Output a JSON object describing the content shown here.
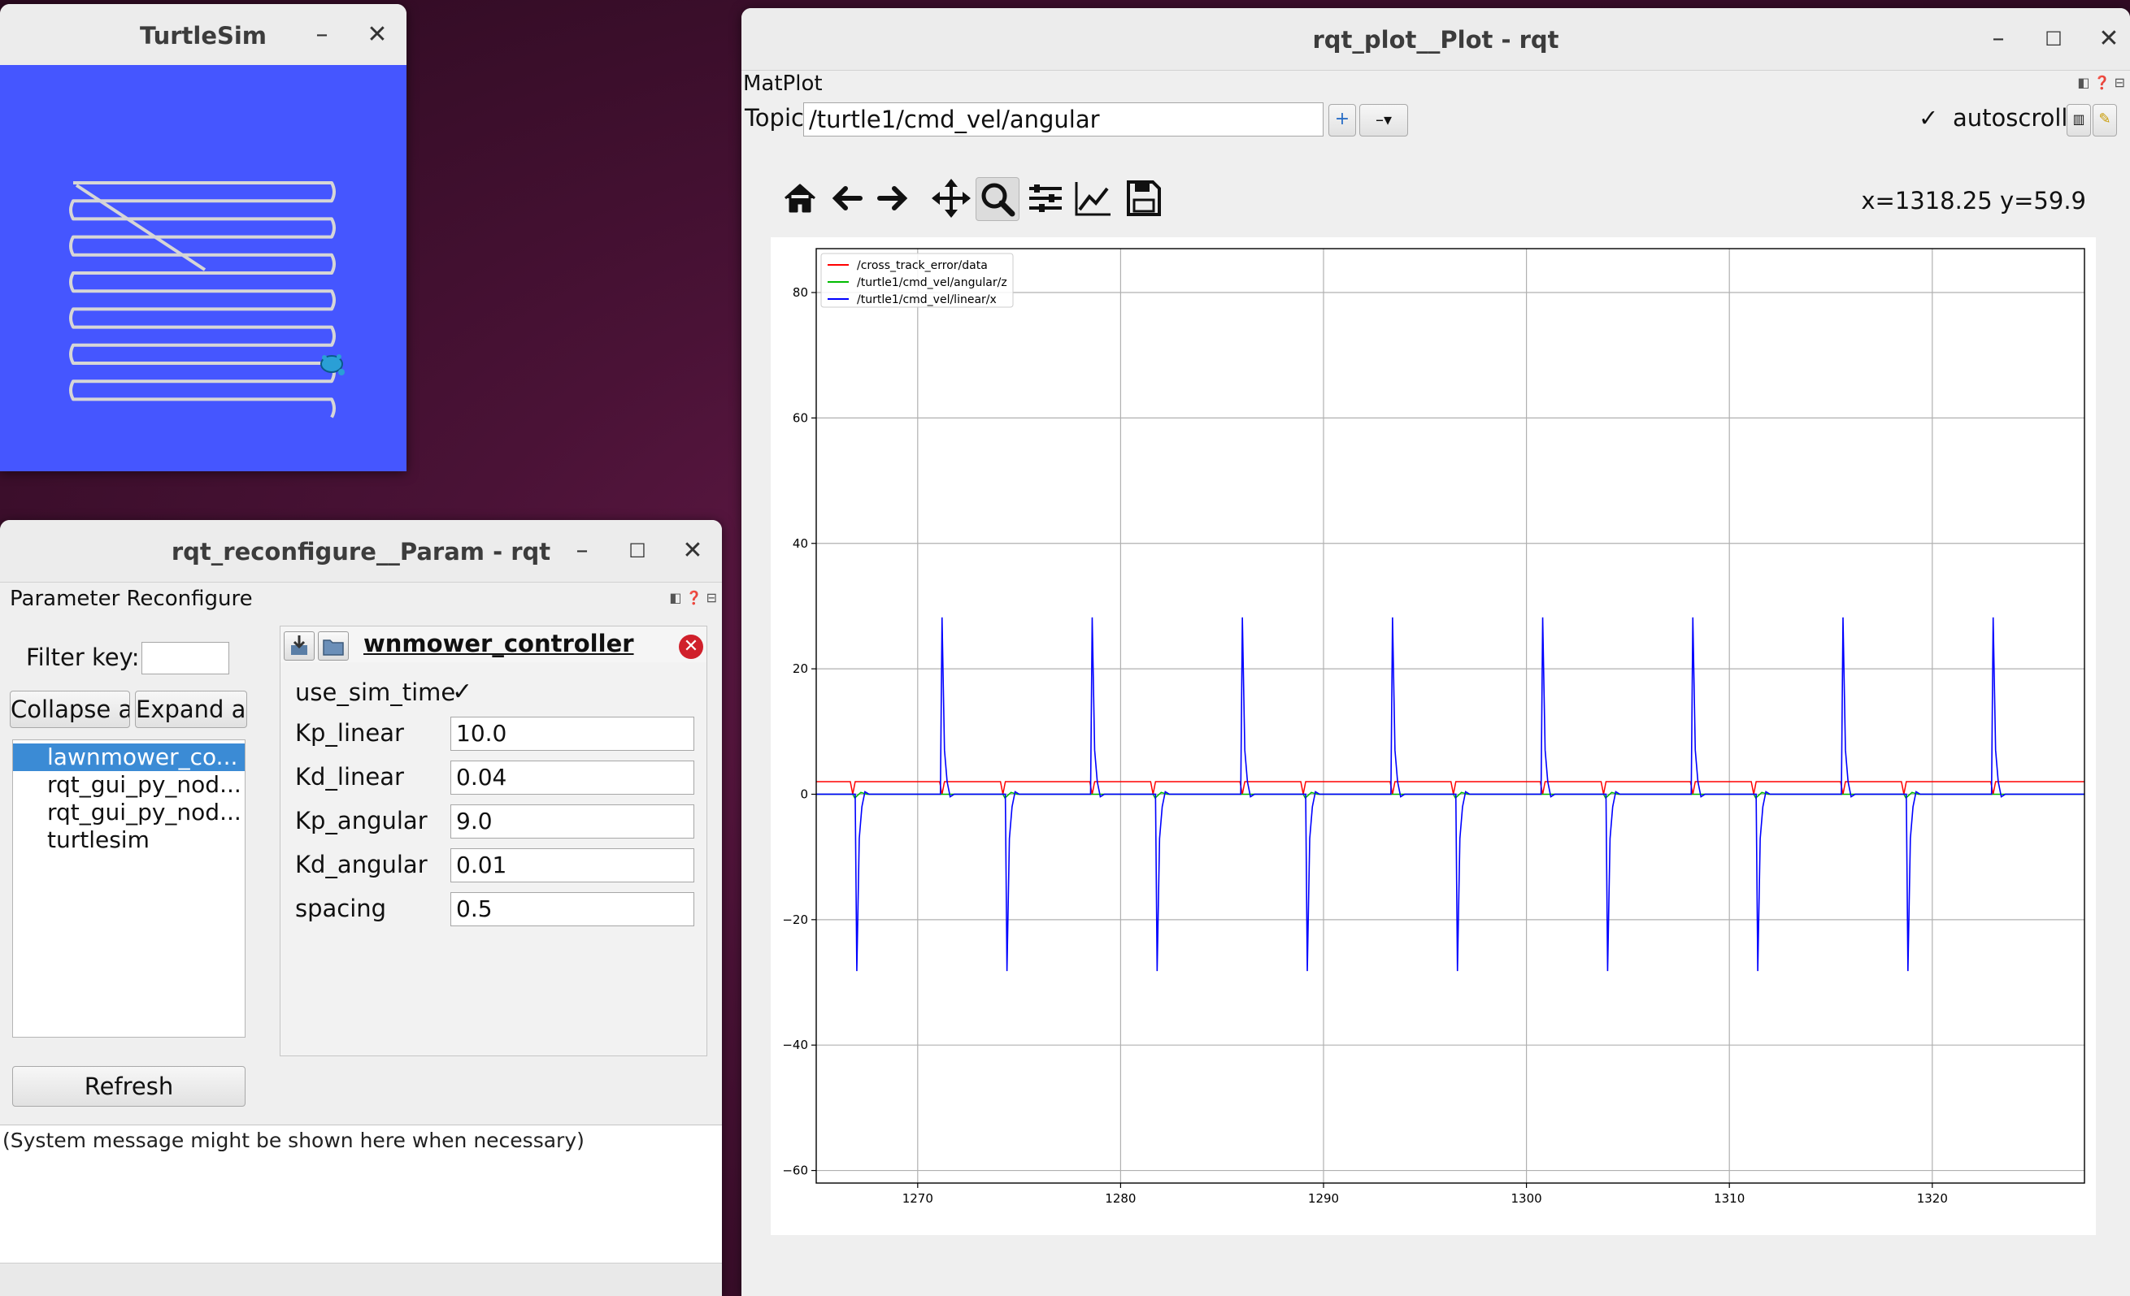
{
  "turtlesim": {
    "title": "TurtleSim",
    "minimize": "–",
    "close": "✕",
    "background_color": "#4556ff",
    "path_color": "#d6d6d6"
  },
  "reconfigure": {
    "title": "rqt_reconfigure__Param - rqt",
    "dock_title": "Parameter Reconfigure",
    "filter_label": "Filter key:",
    "filter_value": "",
    "collapse_label": "Collapse all",
    "expand_label": "Expand all",
    "nodes": [
      {
        "label": "lawnmower_co..."
      },
      {
        "label": "rqt_gui_py_nod..."
      },
      {
        "label": "rqt_gui_py_nod..."
      },
      {
        "label": "turtlesim"
      }
    ],
    "refresh_label": "Refresh",
    "node_title": "wnmower_controller",
    "params": [
      {
        "name": "use_sim_time",
        "kind": "checkbox",
        "value": "✓"
      },
      {
        "name": "Kp_linear",
        "kind": "text",
        "value": "10.0"
      },
      {
        "name": "Kd_linear",
        "kind": "text",
        "value": "0.04"
      },
      {
        "name": "Kp_angular",
        "kind": "text",
        "value": "9.0"
      },
      {
        "name": "Kd_angular",
        "kind": "text",
        "value": "0.01"
      },
      {
        "name": "spacing",
        "kind": "text",
        "value": "0.5"
      }
    ],
    "system_message": "(System message might be shown here when necessary)"
  },
  "plot": {
    "title": "rqt_plot__Plot - rqt",
    "dock_title": "MatPlot",
    "topic_label": "Topic",
    "topic_value": "/turtle1/cmd_vel/angular",
    "add_label": "+",
    "remove_label": "–▾",
    "autoscroll_check": "✓",
    "autoscroll_label": "autoscroll",
    "coords": "x=1318.25 y=59.9",
    "toolbar": [
      "home-icon",
      "back-icon",
      "forward-icon",
      "pan-icon",
      "zoom-icon",
      "configure-subplots-icon",
      "edit-axis-icon",
      "save-icon"
    ]
  },
  "chart_data": {
    "type": "line",
    "title": "",
    "xlabel": "",
    "ylabel": "",
    "xlim": [
      1265,
      1327.5
    ],
    "ylim": [
      -62,
      87
    ],
    "xticks": [
      1270,
      1280,
      1290,
      1300,
      1310,
      1320
    ],
    "yticks": [
      -60,
      -40,
      -20,
      0,
      20,
      40,
      60,
      80
    ],
    "grid": true,
    "legend_position": "upper-left",
    "series": [
      {
        "name": "/cross_track_error/data",
        "color": "#ff0000",
        "baseline": 2,
        "dip_value": 0,
        "event_times": [
          1266.8,
          1271.2,
          1274.2,
          1278.6,
          1281.6,
          1286.0,
          1289.0,
          1293.4,
          1296.4,
          1300.8,
          1303.8,
          1308.2,
          1311.2,
          1315.6,
          1318.6,
          1323.0
        ]
      },
      {
        "name": "/turtle1/cmd_vel/angular/z",
        "color": "#00bb00",
        "baseline": 0,
        "event_times": [
          1266.9,
          1274.3,
          1281.7,
          1289.1,
          1296.5,
          1303.9,
          1311.3,
          1318.7
        ]
      },
      {
        "name": "/turtle1/cmd_vel/linear/x",
        "color": "#0000ff",
        "baseline": 0,
        "spikes_up": {
          "times": [
            1271.2,
            1278.6,
            1286.0,
            1293.4,
            1300.8,
            1308.2,
            1315.6,
            1323.0
          ],
          "peak": 28.2
        },
        "spikes_down": {
          "times": [
            1267.0,
            1274.4,
            1281.8,
            1289.2,
            1296.6,
            1304.0,
            1311.4,
            1318.8
          ],
          "peak": -28.2
        }
      }
    ]
  }
}
